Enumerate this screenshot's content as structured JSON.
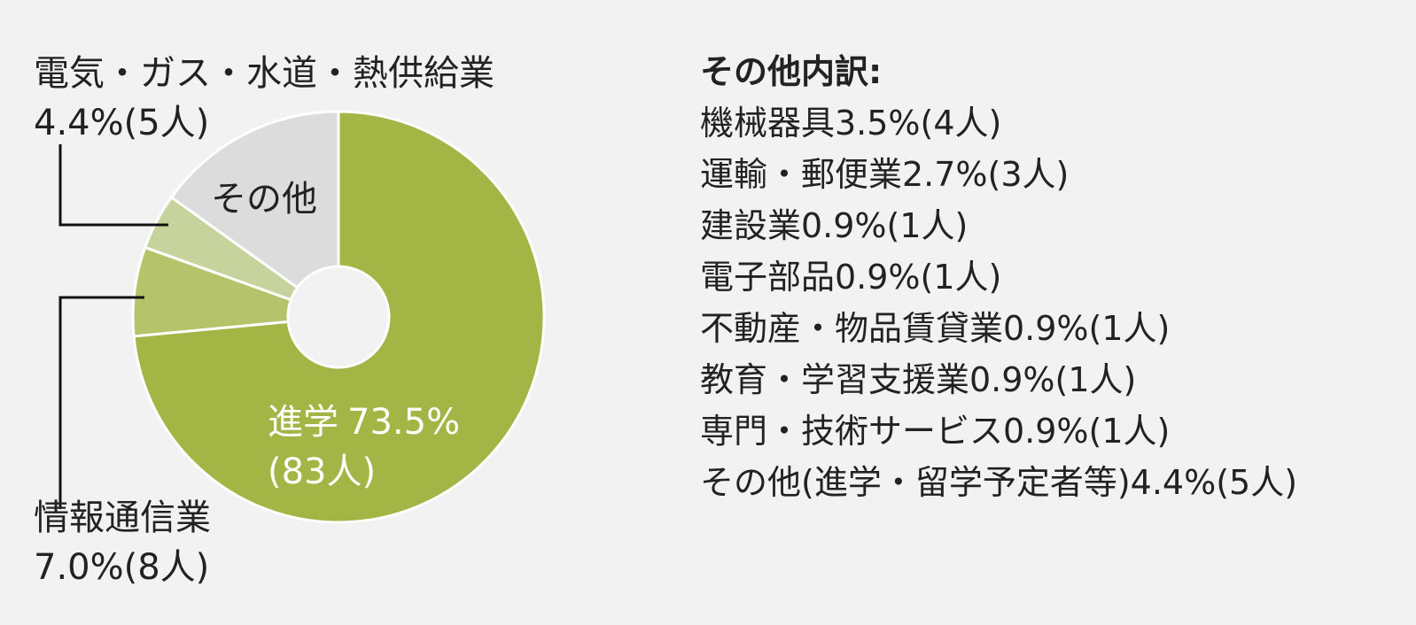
{
  "chart_data": {
    "type": "pie",
    "slices": [
      {
        "label": "進学",
        "percent": 73.5,
        "count": 83,
        "value_text": "73.5%",
        "count_text": "(83人)",
        "color": "#a3b544"
      },
      {
        "label": "情報通信業",
        "percent": 7.0,
        "count": 8,
        "value_text": "7.0%",
        "count_text": "(8人)",
        "color": "#b5c36b"
      },
      {
        "label": "電気・ガス・水道・熱供給業",
        "percent": 4.4,
        "count": 5,
        "value_text": "4.4%",
        "count_text": "(5人)",
        "color": "#c7d39c"
      },
      {
        "label": "その他",
        "percent": 15.1,
        "count": null,
        "value_text": "",
        "count_text": "",
        "color": "#dcdcdc"
      }
    ]
  },
  "labels": {
    "main_name": "進学",
    "main_value": "73.5%",
    "main_count": "(83人)",
    "other": "その他",
    "utility_name": "電気・ガス・水道・熱供給業",
    "utility_value": "4.4%(5人)",
    "it_name": "情報通信業",
    "it_value": "7.0%(8人)"
  },
  "breakdown": {
    "title": "その他内訳:",
    "items": [
      "機械器具3.5%(4人)",
      "運輸・郵便業2.7%(3人)",
      "建設業0.9%(1人)",
      "電子部品0.9%(1人)",
      "不動産・物品賃貸業0.9%(1人)",
      "教育・学習支援業0.9%(1人)",
      "専門・技術サービス0.9%(1人)",
      "その他(進学・留学予定者等)4.4%(5人)"
    ]
  }
}
